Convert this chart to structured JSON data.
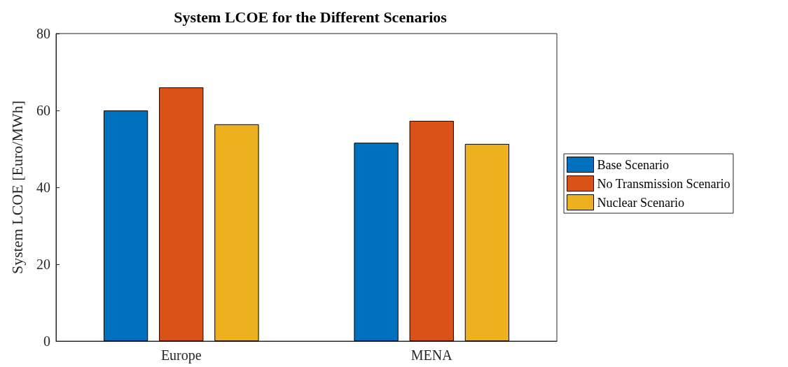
{
  "chart_data": {
    "type": "bar",
    "title": "System LCOE for the Different Scenarios",
    "ylabel": "System LCOE [Euro/MWh]",
    "categories": [
      "Europe",
      "MENA"
    ],
    "series": [
      {
        "name": "Base Scenario",
        "color": "#0072bd",
        "values": [
          60,
          51.6
        ]
      },
      {
        "name": "No Transmission Scenario",
        "color": "#d95319",
        "values": [
          66,
          57.3
        ]
      },
      {
        "name": "Nuclear Scenario",
        "color": "#edb120",
        "values": [
          56.4,
          51.3
        ]
      }
    ],
    "ylim": [
      0,
      80
    ],
    "yticks": [
      0,
      20,
      40,
      60,
      80
    ],
    "grid": false,
    "legend": "right"
  }
}
